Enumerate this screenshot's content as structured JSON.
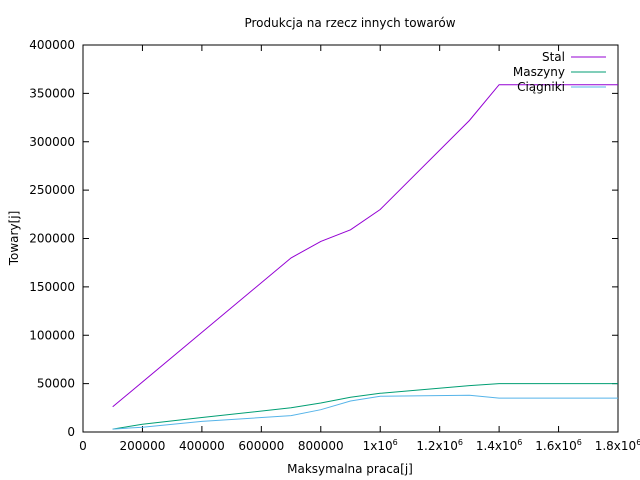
{
  "chart_data": {
    "type": "line",
    "title": "Produkcja na rzecz innych towarów",
    "xlabel": "Maksymalna praca[j]",
    "ylabel": "Towary[j]",
    "xlim": [
      0,
      1800000
    ],
    "ylim": [
      0,
      400000
    ],
    "xticks": [
      {
        "v": 0,
        "label": "0"
      },
      {
        "v": 200000,
        "label": "200000"
      },
      {
        "v": 400000,
        "label": "400000"
      },
      {
        "v": 600000,
        "label": "600000"
      },
      {
        "v": 800000,
        "label": "800000"
      },
      {
        "v": 1000000,
        "label": "1x10",
        "exp": "6"
      },
      {
        "v": 1200000,
        "label": "1.2x10",
        "exp": "6"
      },
      {
        "v": 1400000,
        "label": "1.4x10",
        "exp": "6"
      },
      {
        "v": 1600000,
        "label": "1.6x10",
        "exp": "6"
      },
      {
        "v": 1800000,
        "label": "1.8x10",
        "exp": "6"
      }
    ],
    "yticks": [
      {
        "v": 0,
        "label": "0"
      },
      {
        "v": 50000,
        "label": "50000"
      },
      {
        "v": 100000,
        "label": "100000"
      },
      {
        "v": 150000,
        "label": "150000"
      },
      {
        "v": 200000,
        "label": "200000"
      },
      {
        "v": 250000,
        "label": "250000"
      },
      {
        "v": 300000,
        "label": "300000"
      },
      {
        "v": 350000,
        "label": "350000"
      },
      {
        "v": 400000,
        "label": "400000"
      }
    ],
    "legend_position": "top-right",
    "series": [
      {
        "name": "Stal",
        "color": "#9400d3",
        "points": [
          [
            100000,
            26000
          ],
          [
            700000,
            180000
          ],
          [
            800000,
            197000
          ],
          [
            900000,
            209000
          ],
          [
            1000000,
            230000
          ],
          [
            1300000,
            322000
          ],
          [
            1400000,
            359000
          ],
          [
            1800000,
            359000
          ]
        ]
      },
      {
        "name": "Maszyny",
        "color": "#009e73",
        "points": [
          [
            100000,
            3000
          ],
          [
            200000,
            8000
          ],
          [
            400000,
            15000
          ],
          [
            700000,
            25000
          ],
          [
            800000,
            30000
          ],
          [
            900000,
            36000
          ],
          [
            1000000,
            40000
          ],
          [
            1300000,
            48000
          ],
          [
            1400000,
            50000
          ],
          [
            1800000,
            50000
          ]
        ]
      },
      {
        "name": "Ciągniki",
        "color": "#56b4e9",
        "points": [
          [
            100000,
            3000
          ],
          [
            200000,
            5000
          ],
          [
            400000,
            11000
          ],
          [
            700000,
            17000
          ],
          [
            800000,
            23000
          ],
          [
            900000,
            32000
          ],
          [
            1000000,
            37000
          ],
          [
            1300000,
            38000
          ],
          [
            1400000,
            35000
          ],
          [
            1800000,
            35000
          ]
        ]
      }
    ]
  }
}
